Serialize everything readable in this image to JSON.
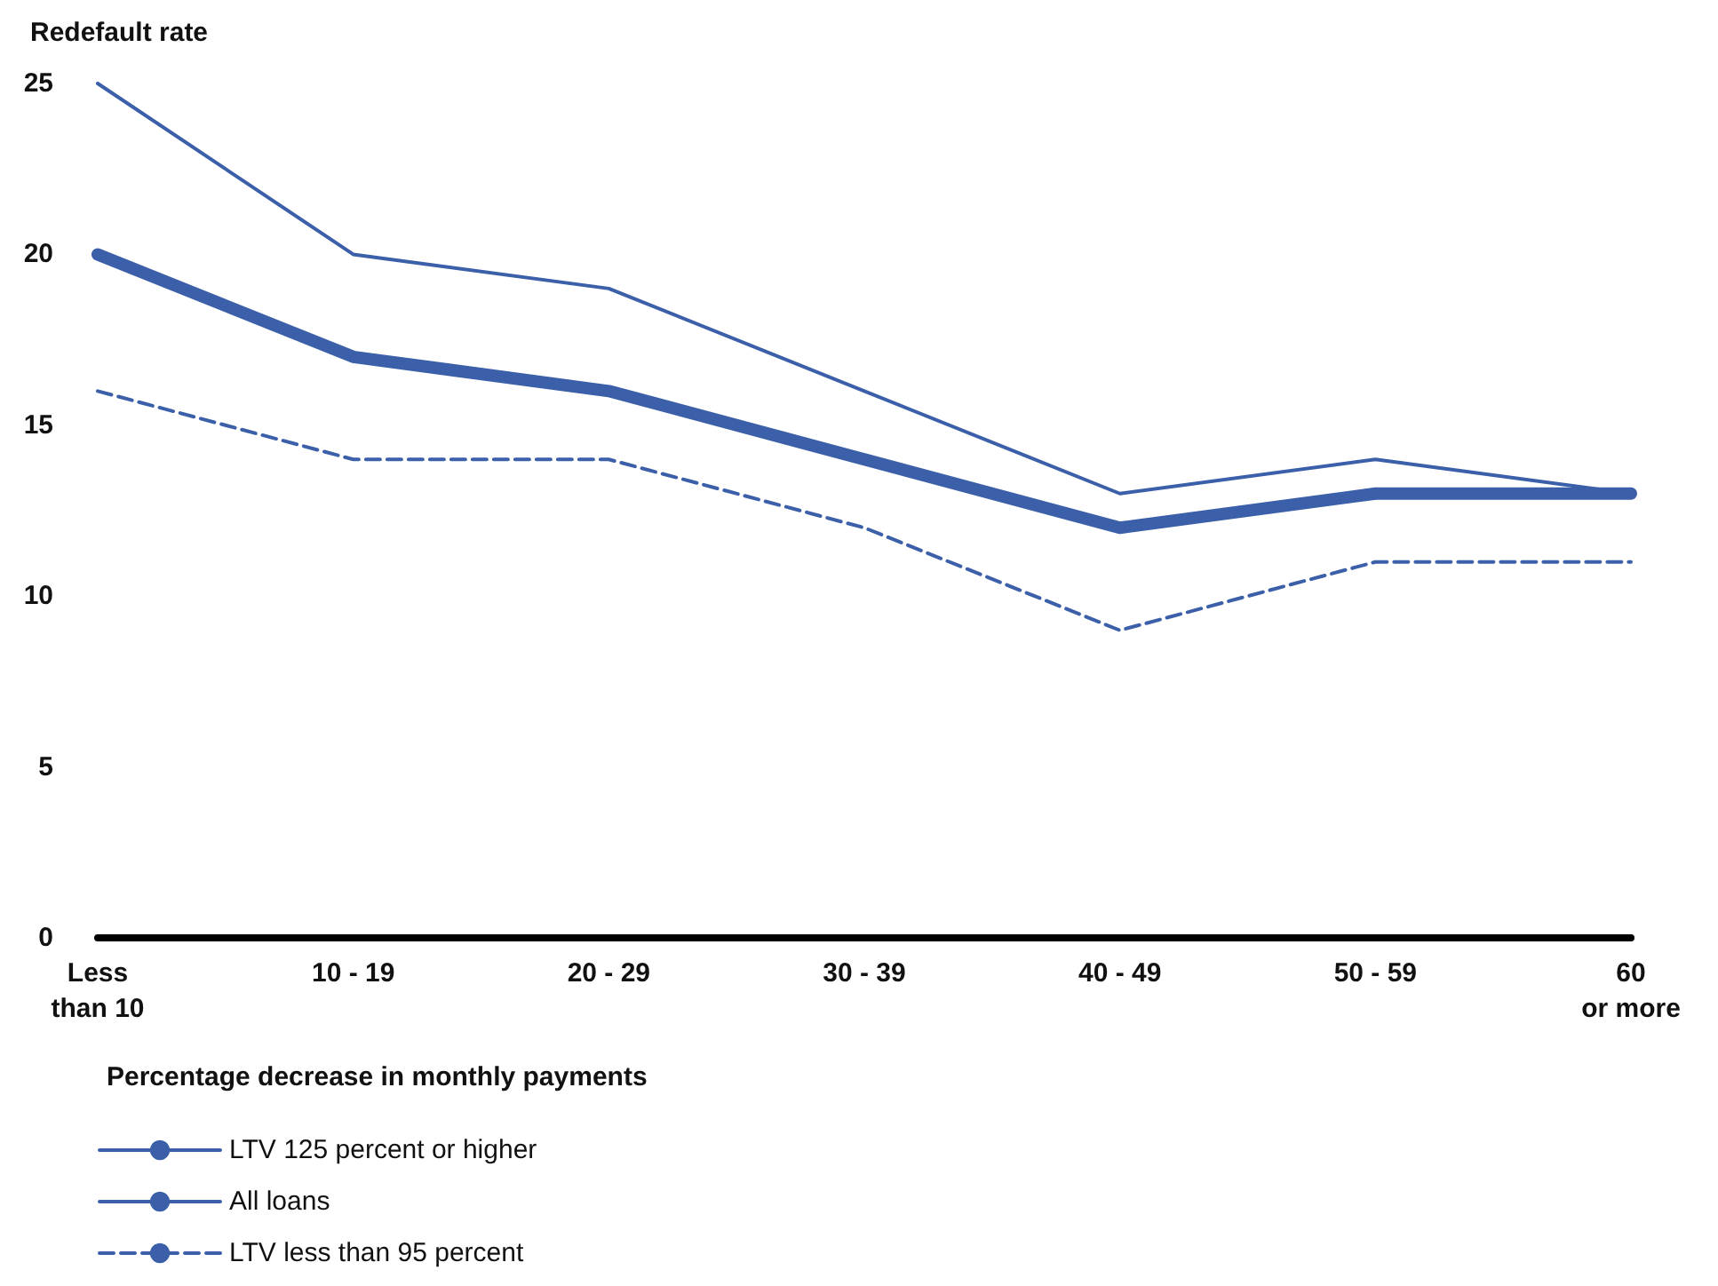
{
  "chart_data": {
    "type": "line",
    "ylabel": "Redefault rate",
    "xlabel": "Percentage decrease in monthly payments",
    "categories": [
      "Less\nthan 10",
      "10 - 19",
      "20 - 29",
      "30 - 39",
      "40 - 49",
      "50 - 59",
      "60\nor more"
    ],
    "series": [
      {
        "name": "LTV 125 percent or higher",
        "color": "#3b5fa8",
        "line_style": "solid",
        "values": [
          25,
          20,
          19,
          16,
          13,
          14,
          13
        ]
      },
      {
        "name": "All loans",
        "color": "#3b5fa8",
        "line_style": "solid",
        "values": [
          20,
          17,
          16,
          14,
          12,
          13,
          13
        ]
      },
      {
        "name": "LTV less than 95 percent",
        "color": "#3b5fa8",
        "line_style": "dashed",
        "values": [
          16,
          14,
          14,
          12,
          9,
          11,
          11
        ]
      }
    ],
    "ylim": [
      0,
      25
    ],
    "yticks": [
      0,
      5,
      10,
      15,
      20,
      25
    ],
    "grid": false,
    "legend": "bottom left",
    "marker": "none"
  }
}
